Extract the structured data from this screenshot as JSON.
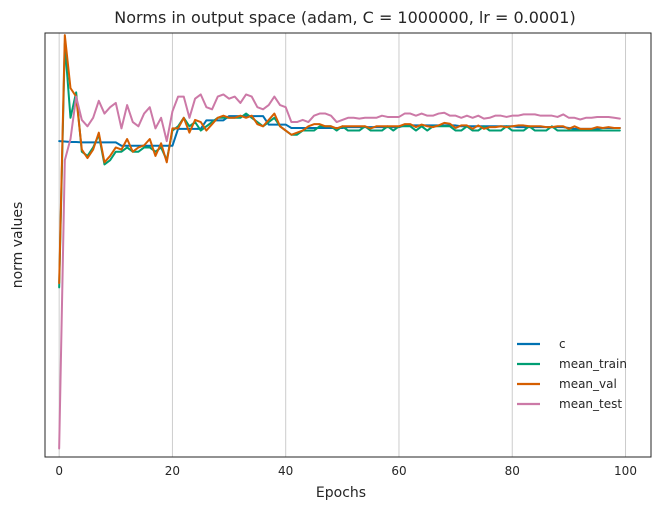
{
  "chart_data": {
    "type": "line",
    "title": "Norms in output space (adam, C = 1000000, lr = 0.0001)",
    "xlabel": "Epochs",
    "ylabel": "norm values",
    "xlim": [
      -2.5,
      104.5
    ],
    "xticks": [
      0,
      20,
      40,
      60,
      80,
      100
    ],
    "ylim": [
      0,
      100
    ],
    "yticks_shown": false,
    "grid": "x-vertical",
    "legend_position": "lower right",
    "x": [
      0,
      1,
      2,
      3,
      4,
      5,
      6,
      7,
      8,
      9,
      10,
      11,
      12,
      13,
      14,
      15,
      16,
      17,
      18,
      19,
      20,
      21,
      22,
      23,
      24,
      25,
      26,
      27,
      28,
      29,
      30,
      31,
      32,
      33,
      34,
      35,
      36,
      37,
      38,
      39,
      40,
      41,
      42,
      43,
      44,
      45,
      46,
      47,
      48,
      49,
      50,
      51,
      52,
      53,
      54,
      55,
      56,
      57,
      58,
      59,
      60,
      61,
      62,
      63,
      64,
      65,
      66,
      67,
      68,
      69,
      70,
      71,
      72,
      73,
      74,
      75,
      76,
      77,
      78,
      79,
      80,
      81,
      82,
      83,
      84,
      85,
      86,
      87,
      88,
      89,
      90,
      91,
      92,
      93,
      94,
      95,
      96,
      97,
      98,
      99
    ],
    "series": [
      {
        "name": "c",
        "color": "#0072b2",
        "values": [
          74.5,
          74.4,
          74.3,
          74.3,
          74.2,
          74.2,
          74.2,
          74.2,
          74.2,
          74.2,
          74.2,
          73.4,
          73.4,
          73.4,
          73.4,
          73.4,
          73.4,
          73.4,
          73.4,
          73.4,
          73.4,
          77.4,
          77.4,
          77.4,
          77.4,
          77.4,
          79.4,
          79.4,
          79.4,
          79.4,
          80.4,
          80.4,
          80.4,
          80.4,
          80.4,
          80.4,
          80.4,
          78.4,
          78.4,
          78.4,
          78.4,
          77.6,
          77.6,
          77.6,
          77.6,
          77.6,
          77.6,
          77.6,
          77.6,
          77.6,
          77.6,
          77.8,
          77.8,
          77.8,
          77.8,
          77.8,
          77.8,
          77.8,
          77.8,
          77.8,
          77.8,
          78.2,
          78.2,
          78.2,
          78.2,
          78.2,
          78.2,
          78.2,
          78.2,
          78.2,
          78.2,
          78.0,
          78.0,
          78.0,
          78.0,
          78.0,
          78.0,
          78.0,
          78.0,
          78.0,
          78.0,
          77.8,
          77.8,
          77.8,
          77.8,
          77.8,
          77.8,
          77.8,
          77.8,
          77.8,
          77.6,
          77.4,
          77.4,
          77.4,
          77.4,
          77.4,
          77.6,
          77.6,
          77.6,
          77.6
        ]
      },
      {
        "name": "mean_train",
        "color": "#009e73",
        "values": [
          40,
          97.5,
          80,
          86,
          72,
          71,
          73,
          76,
          69,
          70,
          72,
          72,
          73,
          72,
          72,
          73,
          73,
          72,
          73,
          70,
          77,
          78,
          80,
          78,
          79,
          77,
          78,
          79,
          80,
          80,
          80,
          80,
          80,
          81,
          80,
          79,
          78,
          79,
          80,
          78,
          77,
          76,
          76,
          77,
          77,
          77,
          78,
          78,
          78,
          77,
          78,
          77,
          77,
          77,
          78,
          77,
          77,
          77,
          78,
          77,
          78,
          78,
          78,
          77,
          78,
          77,
          78,
          78,
          78,
          78,
          77,
          77,
          78,
          77,
          77,
          78,
          77,
          77,
          77,
          78,
          77,
          77,
          77,
          78,
          77,
          77,
          77,
          78,
          77,
          77,
          77,
          77,
          77,
          77,
          77,
          77,
          77,
          77,
          77,
          77
        ]
      },
      {
        "name": "mean_val",
        "color": "#d55e00",
        "values": [
          41,
          99.5,
          87,
          85,
          72.5,
          70.5,
          72.5,
          76.5,
          69.5,
          71,
          73,
          72.5,
          75,
          72,
          73,
          73.5,
          75,
          71,
          74,
          69.5,
          77.5,
          77.5,
          80,
          76.5,
          79.5,
          79,
          77,
          78.5,
          80,
          80.5,
          80,
          80,
          80.5,
          80,
          80.5,
          78.5,
          78,
          79.5,
          81,
          78,
          77,
          76,
          76.5,
          77,
          78,
          78.5,
          78.5,
          78,
          78,
          77.5,
          78,
          78,
          78,
          78,
          78,
          77.5,
          78,
          78,
          78,
          78,
          78,
          78.5,
          78.5,
          77.8,
          78.4,
          78,
          77.8,
          78.2,
          78.8,
          78.6,
          77.6,
          78.2,
          78.2,
          77.4,
          78.2,
          77.4,
          77.8,
          77.8,
          78,
          77.8,
          78,
          78.2,
          78.2,
          78,
          78,
          78,
          77.8,
          77.8,
          78,
          78,
          77.4,
          78,
          77.4,
          77.4,
          77.4,
          77.8,
          77.6,
          77.8,
          77.6,
          77.6
        ]
      },
      {
        "name": "mean_test",
        "color": "#cc79a7",
        "values": [
          2,
          70,
          75,
          85,
          79.5,
          78,
          80,
          84,
          81,
          82.5,
          83.5,
          77.5,
          83,
          79,
          78,
          81,
          82.5,
          77.5,
          80,
          74.5,
          81.5,
          85,
          85,
          80,
          84.5,
          85.5,
          82.5,
          82,
          85,
          85.5,
          84.5,
          85,
          83.5,
          85.5,
          85,
          82.5,
          82,
          83,
          85,
          83,
          82.5,
          79,
          79,
          79.5,
          79,
          80.5,
          81,
          81,
          80.5,
          79,
          79.5,
          80,
          80,
          79.8,
          80,
          80,
          80,
          80.5,
          80.2,
          80.2,
          80.2,
          81,
          81,
          80.5,
          81,
          80.5,
          80.5,
          81,
          81.2,
          80.5,
          80.5,
          80,
          80.5,
          80,
          80.5,
          79.8,
          80,
          80.5,
          80.5,
          80.2,
          80.5,
          80.5,
          80.8,
          80.8,
          80.8,
          80.5,
          80.5,
          80.5,
          80.2,
          80.8,
          80,
          80,
          79.6,
          80,
          80,
          80.2,
          80.2,
          80.2,
          80,
          79.8
        ]
      }
    ]
  }
}
